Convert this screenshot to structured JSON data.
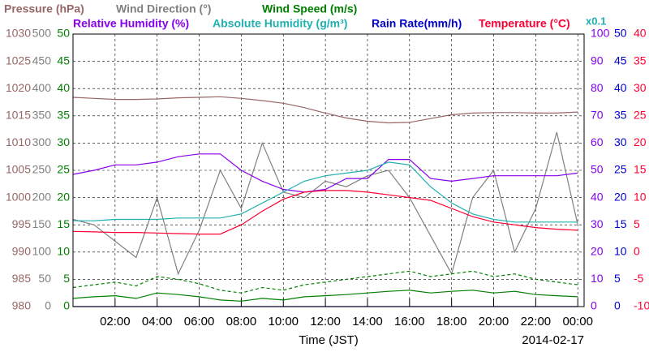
{
  "chart_data": {
    "type": "line",
    "xlabel": "Time (JST)",
    "date": "2014-02-17",
    "x": [
      0,
      1,
      2,
      3,
      4,
      5,
      6,
      7,
      8,
      9,
      10,
      11,
      12,
      13,
      14,
      15,
      16,
      17,
      18,
      19,
      20,
      21,
      22,
      23,
      24
    ],
    "xlim": [
      0,
      24.3
    ],
    "xticks": [
      {
        "value": 2,
        "label": "02:00"
      },
      {
        "value": 4,
        "label": "04:00"
      },
      {
        "value": 6,
        "label": "06:00"
      },
      {
        "value": 8,
        "label": "08:00"
      },
      {
        "value": 10,
        "label": "10:00"
      },
      {
        "value": 12,
        "label": "12:00"
      },
      {
        "value": 14,
        "label": "14:00"
      },
      {
        "value": 16,
        "label": "16:00"
      },
      {
        "value": 18,
        "label": "18:00"
      },
      {
        "value": 20,
        "label": "20:00"
      },
      {
        "value": 22,
        "label": "22:00"
      },
      {
        "value": 24,
        "label": "00:00"
      }
    ],
    "grid": true,
    "series": [
      {
        "name": "Pressure (hPa)",
        "color": "#996666",
        "side": "left",
        "ylim": [
          980,
          1030
        ],
        "yticks": [
          980,
          985,
          990,
          995,
          1000,
          1005,
          1010,
          1015,
          1020,
          1025,
          1030
        ],
        "values": [
          1018.4,
          1018.2,
          1018.0,
          1018.0,
          1018.1,
          1018.3,
          1018.4,
          1018.5,
          1018.2,
          1017.8,
          1017.3,
          1016.5,
          1015.5,
          1014.6,
          1014.0,
          1013.7,
          1013.8,
          1014.5,
          1015.2,
          1015.5,
          1015.6,
          1015.6,
          1015.5,
          1015.5,
          1015.7
        ]
      },
      {
        "name": "Wind Direction (°)",
        "color": "#808080",
        "side": "left",
        "ylim": [
          0,
          500
        ],
        "yticks": [
          0,
          50,
          100,
          150,
          200,
          250,
          300,
          350,
          400,
          450,
          500
        ],
        "values": [
          160,
          150,
          120,
          90,
          200,
          60,
          140,
          250,
          180,
          300,
          210,
          200,
          230,
          220,
          240,
          250,
          200,
          130,
          60,
          200,
          250,
          100,
          180,
          320,
          150
        ]
      },
      {
        "name": "Wind Speed (m/s)",
        "color": "#008000",
        "side": "left",
        "ylim": [
          0,
          50
        ],
        "yticks": [
          0,
          5,
          10,
          15,
          20,
          25,
          30,
          35,
          40,
          45,
          50
        ],
        "values": [
          1.5,
          1.8,
          2.0,
          1.5,
          2.5,
          2.2,
          1.8,
          1.2,
          1.0,
          1.5,
          1.2,
          1.8,
          2.0,
          2.2,
          2.5,
          2.8,
          3.0,
          2.5,
          2.8,
          3.0,
          2.5,
          2.8,
          2.2,
          2.0,
          1.8
        ],
        "max_values": [
          3.5,
          4.0,
          4.5,
          3.8,
          5.5,
          5.0,
          4.2,
          3.0,
          2.5,
          3.5,
          3.0,
          4.0,
          4.5,
          5.0,
          5.5,
          6.0,
          6.5,
          5.5,
          6.0,
          6.5,
          5.5,
          6.0,
          5.0,
          4.5,
          4.0
        ]
      },
      {
        "name": "Relative Humidity (%)",
        "color": "#8800ee",
        "side": "right",
        "ylim": [
          0,
          100
        ],
        "yticks": [
          0,
          10,
          20,
          30,
          40,
          50,
          60,
          70,
          80,
          90,
          100
        ],
        "values": [
          48.5,
          50,
          52,
          52,
          53,
          55,
          56,
          56,
          50,
          46,
          43,
          42,
          43,
          47,
          47,
          54,
          54,
          47,
          46,
          47,
          48,
          48,
          48,
          48,
          49
        ]
      },
      {
        "name": "Absolute Humidity (g/m³)",
        "color": "#20b0b0",
        "side": null,
        "scale_label": "x0.1",
        "ylim": [
          0,
          10
        ],
        "values": [
          3.15,
          3.15,
          3.2,
          3.2,
          3.2,
          3.25,
          3.25,
          3.25,
          3.4,
          3.8,
          4.2,
          4.6,
          4.8,
          4.9,
          5.0,
          5.3,
          5.2,
          4.4,
          3.8,
          3.4,
          3.2,
          3.1,
          3.1,
          3.1,
          3.1
        ]
      },
      {
        "name": "Rain Rate(mm/h)",
        "color": "#0000cc",
        "side": "right",
        "ylim": [
          0,
          50
        ],
        "yticks": [
          0,
          5,
          10,
          15,
          20,
          25,
          30,
          35,
          40,
          45,
          50
        ],
        "values": [
          0,
          0,
          0,
          0,
          0,
          0,
          0,
          0,
          0,
          0,
          0,
          0,
          0,
          0,
          0,
          0,
          0,
          0,
          0,
          0,
          0,
          0,
          0,
          0,
          0
        ]
      },
      {
        "name": "Temperature (°C)",
        "color": "#ff0033",
        "side": "right",
        "ylim": [
          -10,
          40
        ],
        "yticks": [
          -10,
          -5,
          0,
          5,
          10,
          15,
          20,
          25,
          30,
          35,
          40
        ],
        "values": [
          3.8,
          3.7,
          3.6,
          3.6,
          3.5,
          3.4,
          3.3,
          3.3,
          5.0,
          7.5,
          9.7,
          11.0,
          11.3,
          11.3,
          11.0,
          10.5,
          10.0,
          9.5,
          8.0,
          6.5,
          5.5,
          5.0,
          4.5,
          4.2,
          4.0
        ]
      }
    ]
  }
}
